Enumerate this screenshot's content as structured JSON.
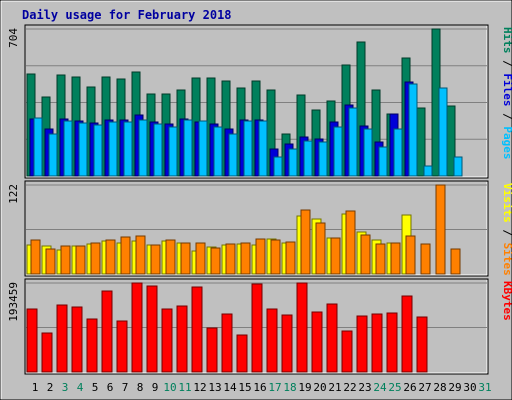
{
  "chart_data": {
    "type": "bar",
    "title": "Daily usage for February 2018",
    "days": [
      "1",
      "2",
      "3",
      "4",
      "5",
      "6",
      "7",
      "8",
      "9",
      "10",
      "11",
      "12",
      "13",
      "14",
      "15",
      "16",
      "17",
      "18",
      "19",
      "20",
      "21",
      "22",
      "23",
      "24",
      "25",
      "26",
      "27",
      "28",
      "29",
      "30",
      "31"
    ],
    "weekend_days": [
      3,
      4,
      10,
      11,
      17,
      18,
      24,
      25,
      31
    ],
    "panels": [
      {
        "id": "hits",
        "max_label": "704",
        "ymax": 704,
        "series": [
          {
            "name": "Hits",
            "color": "#00805c",
            "values": [
              489,
              379,
              482,
              473,
              425,
              475,
              466,
              500,
              391,
              394,
              412,
              470,
              469,
              456,
              423,
              455,
              410,
              201,
              386,
              317,
              361,
              532,
              642,
              414,
              299,
              563,
              326,
              704,
              333,
              0,
              0
            ]
          },
          {
            "name": "Files",
            "color": "#0000d8",
            "values": [
              271,
              226,
              273,
              262,
              253,
              269,
              268,
              290,
              258,
              247,
              271,
              257,
              247,
              227,
              270,
              269,
              128,
              155,
              187,
              176,
              260,
              340,
              238,
              162,
              298,
              448,
              0,
              0,
              0,
              0,
              0
            ]
          },
          {
            "name": "Pages",
            "color": "#00c0ff",
            "values": [
              276,
              199,
              262,
              253,
              244,
              260,
              261,
              270,
              249,
              233,
              266,
              262,
              237,
              203,
              265,
              265,
              89,
              129,
              168,
              162,
              235,
              326,
              226,
              140,
              224,
              441,
              50,
              420,
              93,
              0,
              0
            ]
          }
        ]
      },
      {
        "id": "visits",
        "max_label": "122",
        "ymax": 122,
        "series": [
          {
            "name": "Visits",
            "color": "#ffff00",
            "values": [
              40,
              38,
              33,
              38,
              41,
              45,
              42,
              45,
              40,
              45,
              43,
              32,
              37,
              40,
              41,
              40,
              48,
              42,
              80,
              76,
              49,
              82,
              57,
              47,
              42,
              81,
              0,
              0,
              0,
              0,
              0
            ]
          },
          {
            "name": "Sites",
            "color": "#ff8000",
            "values": [
              47,
              34,
              38,
              38,
              42,
              47,
              51,
              52,
              40,
              47,
              43,
              42,
              36,
              41,
              42,
              48,
              46,
              44,
              88,
              70,
              50,
              86,
              54,
              41,
              42,
              52,
              41,
              122,
              34,
              0,
              0
            ]
          }
        ]
      },
      {
        "id": "kbytes",
        "max_label": "193459",
        "ymax": 193459,
        "series": [
          {
            "name": "KBytes",
            "color": "#ff0000",
            "values": [
              137920,
              85300,
              144930,
              140560,
              115640,
              175530,
              111640,
              192510,
              186510,
              136290,
              143900,
              185340,
              94680,
              125760,
              80440,
              191590,
              138010,
              124000,
              193459,
              131470,
              148410,
              89530,
              121820,
              125360,
              128800,
              165600,
              118500,
              0,
              0,
              0,
              0
            ]
          }
        ]
      }
    ],
    "right_labels": {
      "hits": [
        {
          "text": "Pages",
          "color": "#00c0ff"
        },
        {
          "text": " / ",
          "color": "#000000"
        },
        {
          "text": "Files",
          "color": "#0000d8"
        },
        {
          "text": " / ",
          "color": "#000000"
        },
        {
          "text": "Hits",
          "color": "#00805c"
        }
      ],
      "visits": [
        {
          "text": "Sites",
          "color": "#ff8000"
        },
        {
          "text": " / ",
          "color": "#000000"
        },
        {
          "text": "Visits",
          "color": "#ffff00"
        }
      ],
      "kbytes": [
        {
          "text": "KBytes",
          "color": "#ff0000"
        }
      ]
    },
    "grid": true
  }
}
